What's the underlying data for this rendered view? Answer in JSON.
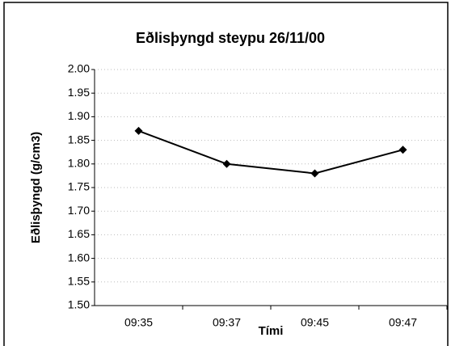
{
  "chart_data": {
    "type": "line",
    "title": "Eðlisþyngd steypu 26/11/00",
    "x_label": "Tími",
    "y_label": "Eðlisþyngd (g/cm3)",
    "categories": [
      "09:35",
      "09:37",
      "09:45",
      "09:47"
    ],
    "series": [
      {
        "name": "Eðlisþyngd",
        "color": "#000000",
        "values": [
          1.87,
          1.8,
          1.78,
          1.83
        ]
      }
    ],
    "ylim": [
      1.5,
      2.0
    ],
    "yticks": [
      {
        "value": 1.5,
        "label": "1.50"
      },
      1.55,
      {
        "value": 1.6,
        "label": "1.60"
      },
      1.65,
      {
        "value": 1.7,
        "label": "1.70"
      },
      1.75,
      {
        "value": 1.8,
        "label": "1.80"
      },
      1.85,
      {
        "value": 1.9,
        "label": "1.90"
      },
      1.95,
      {
        "value": 2.0,
        "label": "2.00"
      }
    ],
    "grid": true
  }
}
